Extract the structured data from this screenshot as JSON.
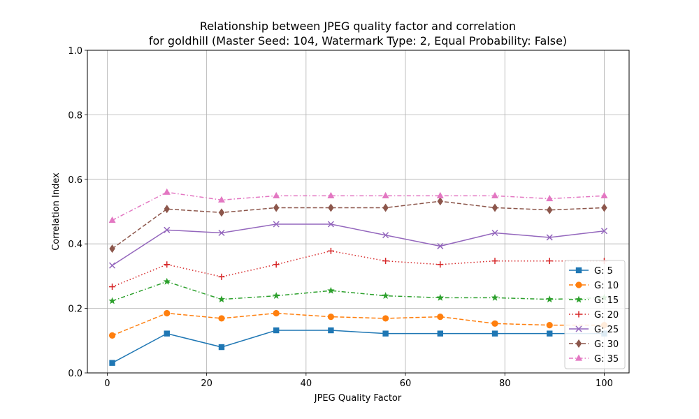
{
  "chart_data": {
    "type": "line",
    "title": [
      "Relationship between JPEG quality factor and correlation",
      "for goldhill (Master Seed: 104, Watermark Type: 2, Equal Probability: False)"
    ],
    "xlabel": "JPEG Quality Factor",
    "ylabel": "Correlation Index",
    "xlim": [
      -4,
      105
    ],
    "ylim": [
      0,
      1.0
    ],
    "xticks": [
      0,
      20,
      40,
      60,
      80,
      100
    ],
    "xtick_labels": [
      "0",
      "20",
      "40",
      "60",
      "80",
      "100"
    ],
    "yticks": [
      0,
      0.2,
      0.4,
      0.6,
      0.8,
      1.0
    ],
    "ytick_labels": [
      "0.0",
      "0.2",
      "0.4",
      "0.6",
      "0.8",
      "1.0"
    ],
    "grid": true,
    "legend_position": "lower-right",
    "x": [
      1,
      12,
      23,
      34,
      45,
      56,
      67,
      78,
      89,
      100
    ],
    "series": [
      {
        "name": "G: 5",
        "color": "#1f77b4",
        "dash": "solid",
        "marker": "square",
        "values": [
          0.031,
          0.122,
          0.08,
          0.132,
          0.132,
          0.122,
          0.122,
          0.122,
          0.122,
          0.122
        ]
      },
      {
        "name": "G: 10",
        "color": "#ff7f0e",
        "dash": "dashed",
        "marker": "circle",
        "values": [
          0.116,
          0.185,
          0.169,
          0.185,
          0.174,
          0.169,
          0.174,
          0.153,
          0.148,
          0.148
        ]
      },
      {
        "name": "G: 15",
        "color": "#2ca02c",
        "dash": "dashdot",
        "marker": "star",
        "values": [
          0.223,
          0.283,
          0.228,
          0.239,
          0.255,
          0.239,
          0.233,
          0.233,
          0.228,
          0.233
        ]
      },
      {
        "name": "G: 20",
        "color": "#d62728",
        "dash": "dotted",
        "marker": "plus",
        "values": [
          0.267,
          0.336,
          0.298,
          0.336,
          0.378,
          0.347,
          0.336,
          0.347,
          0.347,
          0.347
        ]
      },
      {
        "name": "G: 25",
        "color": "#9467bd",
        "dash": "solid",
        "marker": "x",
        "values": [
          0.333,
          0.443,
          0.434,
          0.461,
          0.461,
          0.427,
          0.393,
          0.434,
          0.42,
          0.44
        ]
      },
      {
        "name": "G: 30",
        "color": "#8c564b",
        "dash": "dashed",
        "marker": "diamond",
        "values": [
          0.385,
          0.508,
          0.497,
          0.512,
          0.512,
          0.512,
          0.532,
          0.512,
          0.505,
          0.512
        ]
      },
      {
        "name": "G: 35",
        "color": "#e377c2",
        "dash": "dashdot",
        "marker": "triangle",
        "values": [
          0.473,
          0.56,
          0.536,
          0.549,
          0.549,
          0.549,
          0.549,
          0.549,
          0.54,
          0.549
        ]
      }
    ]
  }
}
